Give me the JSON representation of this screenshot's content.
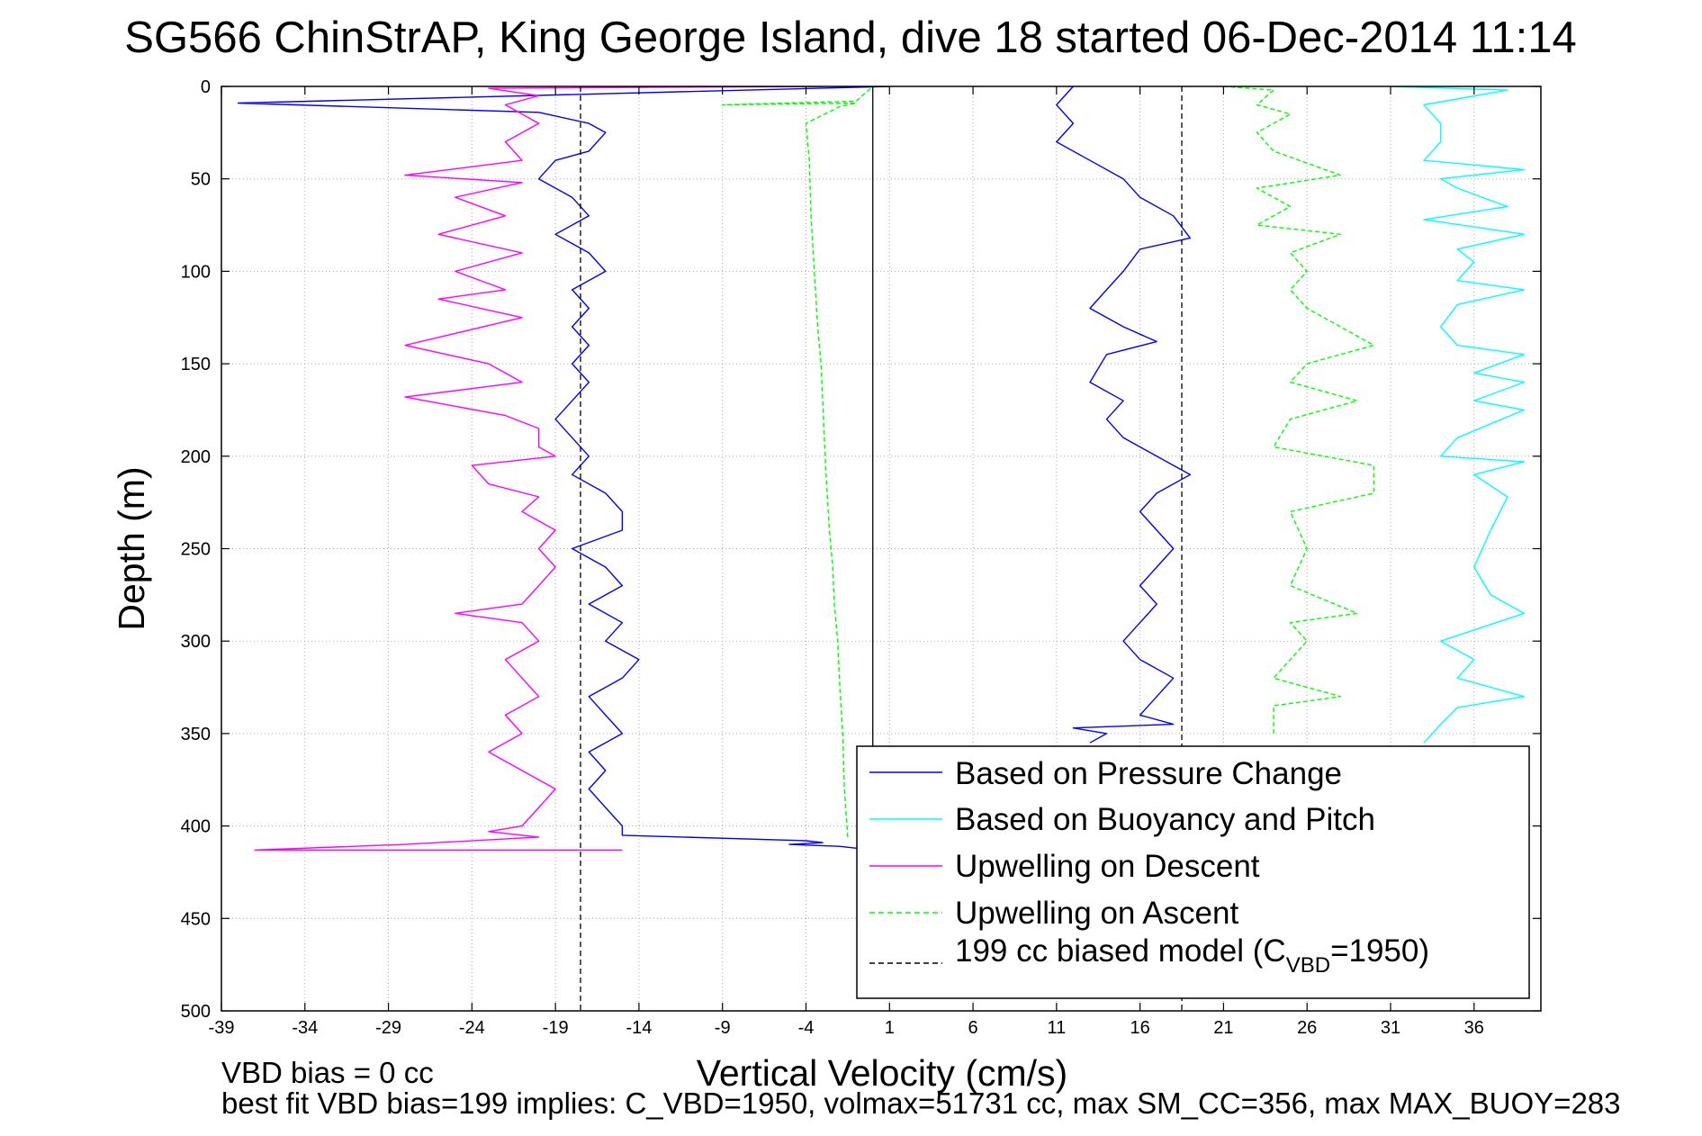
{
  "figure": {
    "title": "SG566 ChinStrAP, King George Island, dive 18 started 06-Dec-2014 11:14",
    "xlabel": "Vertical Velocity (cm/s)",
    "ylabel": "Depth (m)",
    "footer_line1": "VBD bias = 0 cc",
    "footer_line2": "best fit VBD bias=199 implies: C_VBD=1950, volmax=51731 cc, max SM_CC=356, max MAX_BUOY=283"
  },
  "legend": {
    "items": [
      {
        "label": "Based on Pressure Change",
        "color": "#0000ff",
        "style": "solid"
      },
      {
        "label": "Based on Buoyancy and Pitch",
        "color": "#00ffff",
        "style": "solid"
      },
      {
        "label": "Upwelling on Descent",
        "color": "#ff00ff",
        "style": "solid"
      },
      {
        "label": "Upwelling on Ascent",
        "color": "#00ff00",
        "style": "dashed"
      },
      {
        "label_prefix": "199 cc biased model (C",
        "label_sub": "VBD",
        "label_suffix": "=1950)",
        "color": "#000000",
        "style": "dashed"
      }
    ],
    "placement": "bottom-right"
  },
  "chart_data": {
    "type": "line",
    "title": "SG566 ChinStrAP, King George Island, dive 18 started 06-Dec-2014 11:14",
    "xlabel": "Vertical Velocity (cm/s)",
    "ylabel": "Depth (m)",
    "xlim": [
      -39,
      40
    ],
    "ylim": [
      500,
      0
    ],
    "y_reversed": true,
    "grid": true,
    "xticks": [
      "-39",
      "-34",
      "-29",
      "-24",
      "-19",
      "-14",
      "-9",
      "-4",
      "1",
      "6",
      "11",
      "16",
      "21",
      "26",
      "31",
      "36"
    ],
    "yticks": [
      "0",
      "50",
      "100",
      "150",
      "200",
      "250",
      "300",
      "350",
      "400",
      "450",
      "500"
    ],
    "vertical_lines": [
      {
        "x": -17.5,
        "style": "dashed",
        "color": "#000000"
      },
      {
        "x": 0,
        "style": "solid",
        "color": "#000000"
      },
      {
        "x": 18.5,
        "style": "dashed",
        "color": "#000000"
      }
    ],
    "series": [
      {
        "name": "Based on Pressure Change",
        "color": "#0000ff",
        "style": "solid",
        "panel": "descent",
        "points": [
          [
            1,
            0
          ],
          [
            -38,
            9
          ],
          [
            -20,
            14
          ],
          [
            -17,
            20
          ],
          [
            -16,
            25
          ],
          [
            -17,
            35
          ],
          [
            -19,
            40
          ],
          [
            -20,
            50
          ],
          [
            -18,
            60
          ],
          [
            -17,
            70
          ],
          [
            -19,
            80
          ],
          [
            -17,
            90
          ],
          [
            -16,
            100
          ],
          [
            -18,
            110
          ],
          [
            -17,
            120
          ],
          [
            -18,
            130
          ],
          [
            -17,
            140
          ],
          [
            -18,
            150
          ],
          [
            -17,
            160
          ],
          [
            -18,
            170
          ],
          [
            -19,
            180
          ],
          [
            -18,
            190
          ],
          [
            -17,
            200
          ],
          [
            -18,
            210
          ],
          [
            -16,
            220
          ],
          [
            -15,
            230
          ],
          [
            -15,
            240
          ],
          [
            -18,
            250
          ],
          [
            -16,
            260
          ],
          [
            -15,
            270
          ],
          [
            -17,
            280
          ],
          [
            -15,
            290
          ],
          [
            -16,
            300
          ],
          [
            -14,
            310
          ],
          [
            -15,
            320
          ],
          [
            -17,
            330
          ],
          [
            -16,
            340
          ],
          [
            -15,
            350
          ],
          [
            -17,
            360
          ],
          [
            -16,
            370
          ],
          [
            -17,
            380
          ],
          [
            -16,
            390
          ],
          [
            -15,
            400
          ],
          [
            -15,
            405
          ],
          [
            -4,
            408
          ],
          [
            -3,
            409
          ],
          [
            -5,
            410
          ],
          [
            -2,
            411
          ],
          [
            0,
            413
          ]
        ]
      },
      {
        "name": "Upwelling on Descent",
        "color": "#ff00ff",
        "style": "solid",
        "panel": "descent",
        "points": [
          [
            -3,
            0
          ],
          [
            -23,
            1
          ],
          [
            -20,
            5
          ],
          [
            -22,
            10
          ],
          [
            -20,
            20
          ],
          [
            -22,
            30
          ],
          [
            -21,
            40
          ],
          [
            -28,
            48
          ],
          [
            -21,
            52
          ],
          [
            -25,
            60
          ],
          [
            -22,
            70
          ],
          [
            -26,
            80
          ],
          [
            -21,
            90
          ],
          [
            -25,
            100
          ],
          [
            -22,
            110
          ],
          [
            -26,
            115
          ],
          [
            -21,
            125
          ],
          [
            -28,
            140
          ],
          [
            -23,
            150
          ],
          [
            -21,
            160
          ],
          [
            -28,
            168
          ],
          [
            -22,
            178
          ],
          [
            -20,
            185
          ],
          [
            -20,
            195
          ],
          [
            -19,
            200
          ],
          [
            -24,
            205
          ],
          [
            -23,
            215
          ],
          [
            -20,
            222
          ],
          [
            -21,
            230
          ],
          [
            -19,
            240
          ],
          [
            -20,
            250
          ],
          [
            -19,
            260
          ],
          [
            -20,
            270
          ],
          [
            -21,
            280
          ],
          [
            -25,
            285
          ],
          [
            -21,
            290
          ],
          [
            -20,
            300
          ],
          [
            -22,
            310
          ],
          [
            -21,
            320
          ],
          [
            -20,
            330
          ],
          [
            -22,
            340
          ],
          [
            -21,
            350
          ],
          [
            -23,
            360
          ],
          [
            -21,
            370
          ],
          [
            -19,
            380
          ],
          [
            -20,
            390
          ],
          [
            -21,
            400
          ],
          [
            -23,
            403
          ],
          [
            -20,
            406
          ],
          [
            -28,
            410
          ],
          [
            -37,
            413
          ],
          [
            -15,
            413
          ]
        ]
      },
      {
        "name": "Upwelling on Ascent",
        "color": "#00ff00",
        "style": "dashed",
        "panel": "descent",
        "points": [
          [
            -1.5,
            406
          ],
          [
            -1.7,
            380
          ],
          [
            -1.8,
            350
          ],
          [
            -2,
            320
          ],
          [
            -2.1,
            300
          ],
          [
            -2.3,
            280
          ],
          [
            -2.4,
            260
          ],
          [
            -2.6,
            240
          ],
          [
            -2.8,
            210
          ],
          [
            -2.9,
            190
          ],
          [
            -3.0,
            170
          ],
          [
            -3.1,
            150
          ],
          [
            -3.3,
            130
          ],
          [
            -3.5,
            100
          ],
          [
            -3.7,
            70
          ],
          [
            -3.8,
            40
          ],
          [
            -4.0,
            20
          ],
          [
            -2,
            11
          ],
          [
            -1,
            9
          ],
          [
            -9,
            10
          ],
          [
            -1,
            8
          ],
          [
            0,
            0
          ]
        ]
      },
      {
        "name": "Based on Pressure Change",
        "color": "#0000ff",
        "style": "solid",
        "panel": "ascent",
        "points": [
          [
            12,
            0
          ],
          [
            11,
            10
          ],
          [
            12,
            20
          ],
          [
            11,
            30
          ],
          [
            13,
            40
          ],
          [
            15,
            50
          ],
          [
            16,
            60
          ],
          [
            18,
            70
          ],
          [
            19,
            82
          ],
          [
            16,
            88
          ],
          [
            15,
            100
          ],
          [
            14,
            110
          ],
          [
            13,
            120
          ],
          [
            15,
            130
          ],
          [
            17,
            138
          ],
          [
            14,
            145
          ],
          [
            13,
            160
          ],
          [
            15,
            170
          ],
          [
            14,
            180
          ],
          [
            15,
            190
          ],
          [
            17,
            200
          ],
          [
            19,
            210
          ],
          [
            17,
            220
          ],
          [
            16,
            230
          ],
          [
            17,
            240
          ],
          [
            18,
            250
          ],
          [
            17,
            260
          ],
          [
            16,
            270
          ],
          [
            17,
            280
          ],
          [
            16,
            290
          ],
          [
            15,
            300
          ],
          [
            16,
            310
          ],
          [
            18,
            320
          ],
          [
            17,
            330
          ],
          [
            16,
            340
          ],
          [
            18,
            345
          ],
          [
            12,
            347
          ],
          [
            14,
            350
          ],
          [
            13,
            355
          ]
        ]
      },
      {
        "name": "Upwelling on Ascent",
        "color": "#00ff00",
        "style": "dashed",
        "panel": "ascent",
        "points": [
          [
            21,
            0
          ],
          [
            24,
            2
          ],
          [
            23,
            10
          ],
          [
            25,
            15
          ],
          [
            23,
            25
          ],
          [
            24,
            35
          ],
          [
            28,
            48
          ],
          [
            23,
            55
          ],
          [
            25,
            65
          ],
          [
            23,
            75
          ],
          [
            28,
            80
          ],
          [
            25,
            90
          ],
          [
            26,
            100
          ],
          [
            25,
            110
          ],
          [
            26,
            120
          ],
          [
            30,
            140
          ],
          [
            26,
            150
          ],
          [
            25,
            160
          ],
          [
            29,
            170
          ],
          [
            25,
            180
          ],
          [
            24,
            195
          ],
          [
            30,
            205
          ],
          [
            30,
            220
          ],
          [
            25,
            230
          ],
          [
            26,
            250
          ],
          [
            25,
            270
          ],
          [
            29,
            285
          ],
          [
            25,
            290
          ],
          [
            26,
            300
          ],
          [
            24,
            320
          ],
          [
            28,
            330
          ],
          [
            24,
            335
          ],
          [
            24,
            350
          ]
        ]
      },
      {
        "name": "Based on Buoyancy and Pitch",
        "color": "#00ffff",
        "style": "solid",
        "panel": "ascent",
        "points": [
          [
            31,
            0
          ],
          [
            38,
            2
          ],
          [
            33,
            10
          ],
          [
            34,
            20
          ],
          [
            34,
            30
          ],
          [
            33,
            40
          ],
          [
            39,
            45
          ],
          [
            34,
            50
          ],
          [
            35,
            55
          ],
          [
            38,
            65
          ],
          [
            33,
            72
          ],
          [
            39,
            80
          ],
          [
            35,
            88
          ],
          [
            36,
            95
          ],
          [
            35,
            105
          ],
          [
            39,
            110
          ],
          [
            35,
            118
          ],
          [
            34,
            130
          ],
          [
            35,
            140
          ],
          [
            39,
            145
          ],
          [
            36,
            155
          ],
          [
            39,
            160
          ],
          [
            36,
            170
          ],
          [
            39,
            175
          ],
          [
            35,
            190
          ],
          [
            34,
            200
          ],
          [
            39,
            203
          ],
          [
            36,
            210
          ],
          [
            38,
            222
          ],
          [
            37,
            240
          ],
          [
            36,
            260
          ],
          [
            37,
            275
          ],
          [
            39,
            285
          ],
          [
            34,
            300
          ],
          [
            36,
            310
          ],
          [
            35,
            320
          ],
          [
            39,
            330
          ],
          [
            35,
            336
          ],
          [
            34,
            345
          ],
          [
            33,
            355
          ]
        ]
      }
    ]
  }
}
